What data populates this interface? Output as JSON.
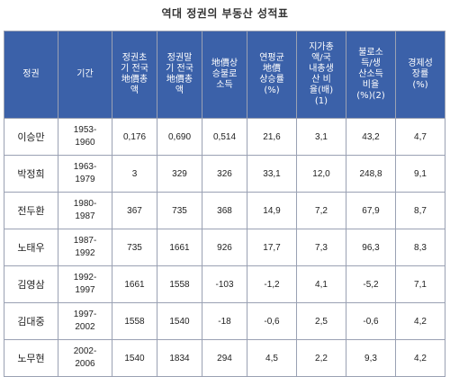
{
  "title": "역대 정권의 부동산 성적표",
  "headers": [
    "정권",
    "기간",
    "정권초\n기 전국\n地價총\n액",
    "정권말\n기 전국\n地價총\n액",
    "地價상\n승불로\n소득",
    "연평균\n地價\n상승률\n(%)",
    "지가총\n액/국\n내총생\n산 비\n율(배)\n(1)",
    "불로소\n득/생\n산소득\n비율\n(%)(2)",
    "경제성\n장률\n(%)"
  ],
  "rows": [
    [
      "이승만",
      "1953-\n1960",
      "0,176",
      "0,690",
      "0,514",
      "21,6",
      "3,1",
      "43,2",
      "4,7"
    ],
    [
      "박정희",
      "1963-\n1979",
      "3",
      "329",
      "326",
      "33,1",
      "12,0",
      "248,8",
      "9,1"
    ],
    [
      "전두환",
      "1980-\n1987",
      "367",
      "735",
      "368",
      "14,9",
      "7,2",
      "67,9",
      "8,7"
    ],
    [
      "노태우",
      "1987-\n1992",
      "735",
      "1661",
      "926",
      "17,7",
      "7,3",
      "96,3",
      "8,3"
    ],
    [
      "김영삼",
      "1992-\n1997",
      "1661",
      "1558",
      "-103",
      "-1,2",
      "4,1",
      "-5,2",
      "7,1"
    ],
    [
      "김대중",
      "1997-\n2002",
      "1558",
      "1540",
      "-18",
      "-0,6",
      "2,5",
      "-0,6",
      "4,2"
    ],
    [
      "노무현",
      "2002-\n2006",
      "1540",
      "1834",
      "294",
      "4,5",
      "2,2",
      "9,3",
      "4,2"
    ]
  ]
}
